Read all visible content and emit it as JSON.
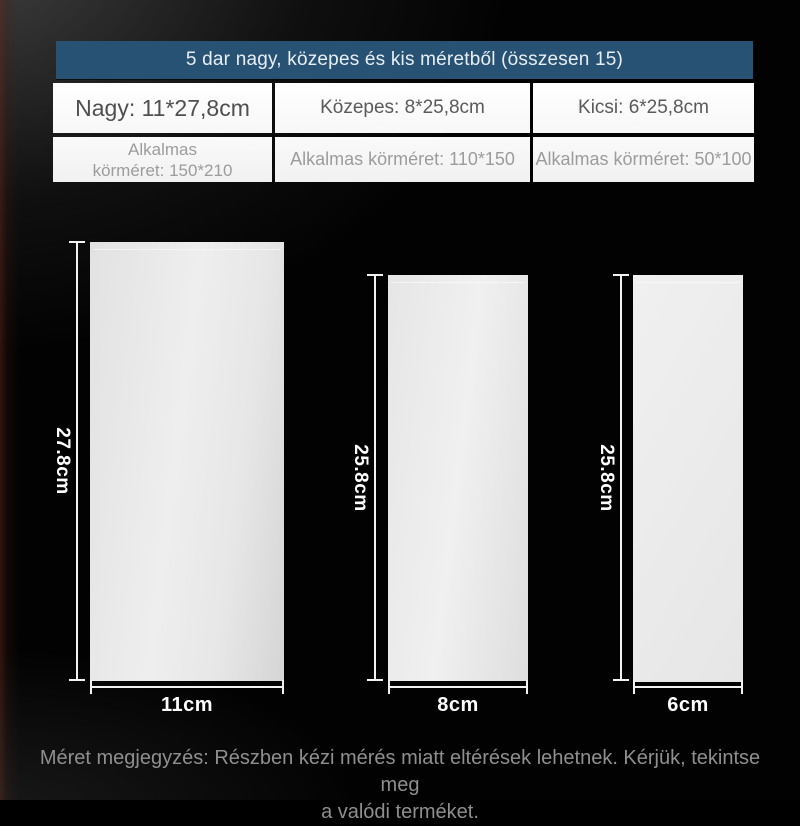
{
  "header": {
    "title": "5 dar nagy, közepes és kis méretből (összesen 15)"
  },
  "size_table": {
    "columns": [
      {
        "name": "nagy",
        "size": "Nagy: 11*27,8cm",
        "fit_lines": [
          "Alkalmas",
          "körméret: 150*210"
        ]
      },
      {
        "name": "kozepes",
        "size": "Közepes: 8*25,8cm",
        "fit_lines": [
          "Alkalmas körméret: 110*150"
        ]
      },
      {
        "name": "kicsi",
        "size": "Kicsi: 6*25,8cm",
        "fit_lines": [
          "Alkalmas körméret: 50*100"
        ]
      }
    ]
  },
  "bags": [
    {
      "name": "nagy",
      "height_label": "27.8cm",
      "width_label": "11cm"
    },
    {
      "name": "kozepes",
      "height_label": "25.8cm",
      "width_label": "8cm"
    },
    {
      "name": "kicsi",
      "height_label": "25.8cm",
      "width_label": "6cm"
    }
  ],
  "footnote": {
    "lines": [
      "Méret megjegyzés: Részben kézi mérés miatt eltérések lehetnek. Kérjük, tekintse meg",
      "a valódi terméket."
    ]
  },
  "colors": {
    "header_bg": "#275274",
    "header_text": "#e9eef4",
    "cell_bg": "#fcfcfc",
    "size_text": "#5a5a5a",
    "fit_text": "#9c9c9c",
    "dimension_line": "#f2f2f2",
    "dimension_label": "#ffffff",
    "note_text": "#8f8f8f",
    "background": "#020202"
  }
}
